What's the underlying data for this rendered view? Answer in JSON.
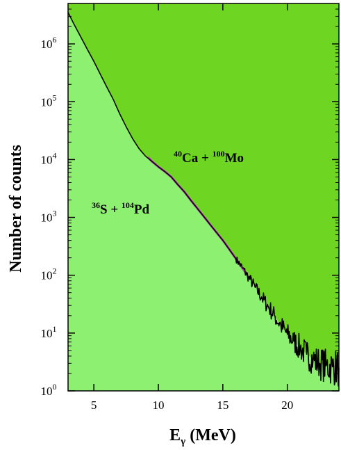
{
  "chart_data": {
    "type": "line",
    "title": "",
    "xlabel_main": "E",
    "xlabel_sub": "γ",
    "xlabel_unit": " (MeV)",
    "ylabel": "Number of counts",
    "xlim": [
      3,
      24
    ],
    "ylim": [
      1,
      5000000
    ],
    "yscale": "log",
    "grid": false,
    "xticks": [
      5,
      10,
      15,
      20
    ],
    "yticks": [
      {
        "value": 1,
        "base": "10",
        "exp": "0"
      },
      {
        "value": 10,
        "base": "10",
        "exp": "1"
      },
      {
        "value": 100,
        "base": "10",
        "exp": "2"
      },
      {
        "value": 1000,
        "base": "10",
        "exp": "3"
      },
      {
        "value": 10000,
        "base": "10",
        "exp": "4"
      },
      {
        "value": 100000,
        "base": "10",
        "exp": "5"
      },
      {
        "value": 1000000,
        "base": "10",
        "exp": "6"
      }
    ],
    "series": [
      {
        "color": "#000000",
        "x": [
          3.0,
          3.5,
          4.0,
          4.5,
          5.0,
          5.5,
          6.0,
          6.5,
          7.0,
          7.5,
          8.0,
          8.5,
          9.0,
          9.5,
          10.0,
          10.5,
          11.0,
          11.5,
          12.0,
          12.5,
          13.0,
          13.5,
          14.0,
          14.5,
          15.0,
          15.5,
          16.0,
          16.5,
          17.0,
          17.5,
          18.0,
          18.5,
          19.0,
          19.5,
          20.0,
          20.5,
          21.0,
          21.5,
          22.0,
          22.5,
          23.0,
          23.5,
          24.0
        ],
        "y": [
          3500000,
          2100000,
          1300000,
          800000,
          500000,
          300000,
          180000,
          110000,
          62000,
          37000,
          23000,
          15500,
          11500,
          9300,
          7500,
          6200,
          5000,
          3700,
          2800,
          2000,
          1450,
          1050,
          760,
          550,
          400,
          280,
          195,
          135,
          92,
          62,
          42,
          29,
          20,
          13.5,
          9.5,
          7.2,
          5.5,
          4.3,
          3.5,
          3.0,
          2.7,
          2.6,
          2.5
        ]
      },
      {
        "color": "#c040c0",
        "x": [
          9.2,
          9.5,
          10.0,
          10.5,
          11.0,
          11.5,
          12.0,
          12.5,
          13.0,
          13.5,
          14.0,
          14.5,
          15.0,
          15.5,
          16.0,
          16.5,
          17.0
        ],
        "y": [
          11000,
          9300,
          7500,
          6200,
          5000,
          3700,
          2800,
          2000,
          1450,
          1050,
          760,
          550,
          400,
          280,
          195,
          135,
          92
        ]
      }
    ],
    "annotations": [
      {
        "pre": "40",
        "a": "Ca + ",
        "mid": "100",
        "b": "Mo"
      },
      {
        "pre": "36",
        "a": "S + ",
        "mid": "104",
        "b": "Pd"
      }
    ],
    "fills": {
      "upper": "#6ed622",
      "lower": "#8ef070"
    }
  }
}
